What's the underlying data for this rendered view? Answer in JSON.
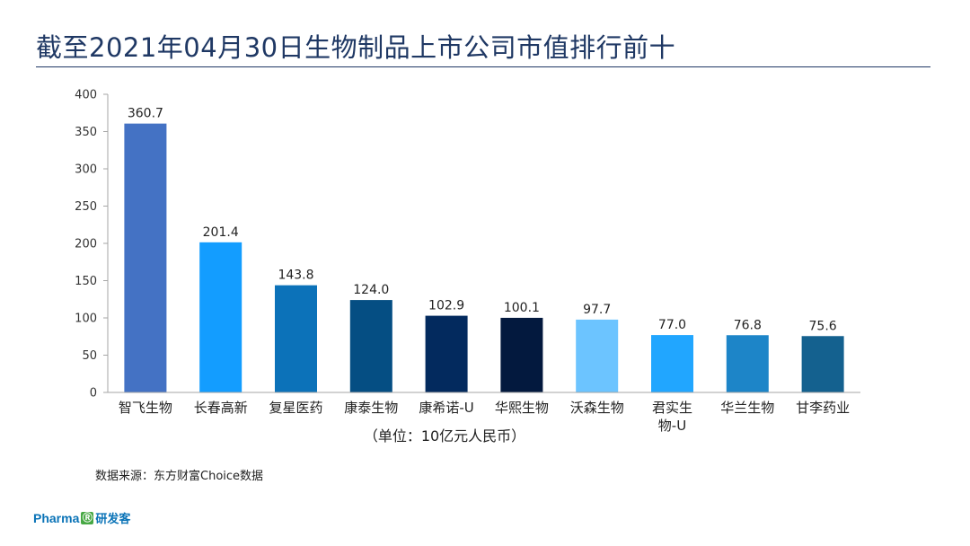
{
  "title": "截至2021年04月30日生物制品上市公司市值排行前十",
  "source": "数据来源：东方财富Choice数据",
  "logo": {
    "pharma": "Pharma",
    "mark": "Ⓡ",
    "cn": "研发客"
  },
  "colors": {
    "title": "#1f3864",
    "bars": [
      "#4472c4",
      "#139dff",
      "#0c72b9",
      "#054e83",
      "#032a5e",
      "#03193e",
      "#6cc4ff",
      "#21a6ff",
      "#1d85c8",
      "#14618f"
    ]
  },
  "chart_data": {
    "type": "bar",
    "title": "",
    "xlabel": "（单位：10亿元人民币）",
    "ylabel": "",
    "ylim": [
      0,
      400
    ],
    "yticks": [
      "0",
      "50",
      "100",
      "150",
      "200",
      "250",
      "300",
      "350",
      "400"
    ],
    "grid": false,
    "categories": [
      [
        "智飞生物"
      ],
      [
        "长春高新"
      ],
      [
        "复星医药"
      ],
      [
        "康泰生物"
      ],
      [
        "康希诺-U"
      ],
      [
        "华熙生物"
      ],
      [
        "沃森生物"
      ],
      [
        "君实生",
        "物-U"
      ],
      [
        "华兰生物"
      ],
      [
        "甘李药业"
      ]
    ],
    "values": [
      360.7,
      201.4,
      143.8,
      124.0,
      102.9,
      100.1,
      97.7,
      77.0,
      76.8,
      75.6
    ],
    "value_labels": [
      "360.7",
      "201.4",
      "143.8",
      "124.0",
      "102.9",
      "100.1",
      "97.7",
      "77.0",
      "76.8",
      "75.6"
    ]
  }
}
